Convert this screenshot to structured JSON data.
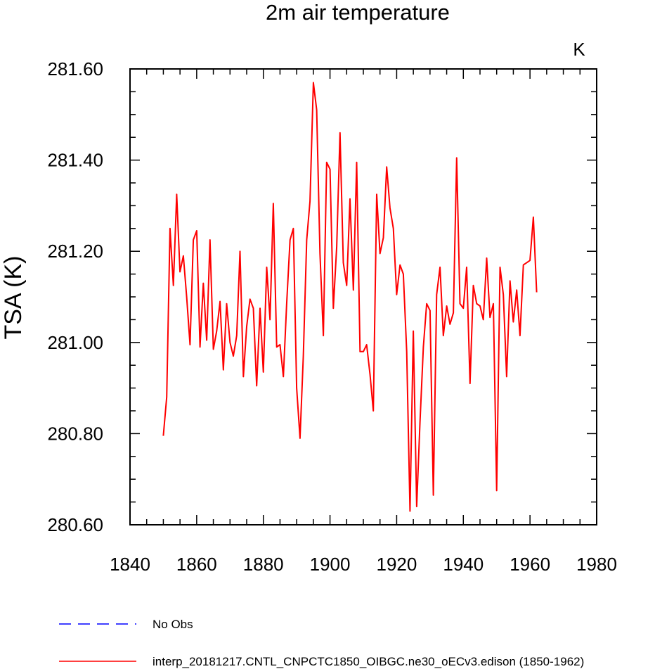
{
  "chart_data": {
    "type": "line",
    "title": "2m air temperature",
    "units": "K",
    "xlabel": "",
    "ylabel": "TSA  (K)",
    "xlim": [
      1840,
      1980
    ],
    "ylim": [
      280.6,
      281.6
    ],
    "x_ticks": [
      1840,
      1860,
      1880,
      1900,
      1920,
      1940,
      1960,
      1980
    ],
    "x_tick_labels": [
      "1840",
      "1860",
      "1880",
      "1900",
      "1920",
      "1940",
      "1960",
      "1980"
    ],
    "y_ticks": [
      280.6,
      280.8,
      281.0,
      281.2,
      281.4,
      281.6
    ],
    "y_tick_labels": [
      "280.60",
      "280.80",
      "281.00",
      "281.20",
      "281.40",
      "281.60"
    ],
    "x_minor_step": 5,
    "y_minor_step": 0.05,
    "grid": false,
    "legend_position": "bottom-left",
    "series": [
      {
        "name": "interp_20181217.CNTL_CNPCTC1850_OIBGC.ne30_oECv3.edison (1850-1962)",
        "color": "#ff0000",
        "style": "solid",
        "x": [
          1850,
          1851,
          1852,
          1853,
          1854,
          1855,
          1856,
          1857,
          1858,
          1859,
          1860,
          1861,
          1862,
          1863,
          1864,
          1865,
          1866,
          1867,
          1868,
          1869,
          1870,
          1871,
          1872,
          1873,
          1874,
          1875,
          1876,
          1877,
          1878,
          1879,
          1880,
          1881,
          1882,
          1883,
          1884,
          1885,
          1886,
          1887,
          1888,
          1889,
          1890,
          1891,
          1892,
          1893,
          1894,
          1895,
          1896,
          1897,
          1898,
          1899,
          1900,
          1901,
          1902,
          1903,
          1904,
          1905,
          1906,
          1907,
          1908,
          1909,
          1910,
          1911,
          1912,
          1913,
          1914,
          1915,
          1916,
          1917,
          1918,
          1919,
          1920,
          1921,
          1922,
          1923,
          1924,
          1925,
          1926,
          1927,
          1928,
          1929,
          1930,
          1931,
          1932,
          1933,
          1934,
          1935,
          1936,
          1937,
          1938,
          1939,
          1940,
          1941,
          1942,
          1943,
          1944,
          1945,
          1946,
          1947,
          1948,
          1949,
          1950,
          1951,
          1952,
          1953,
          1954,
          1955,
          1956,
          1957,
          1958,
          1959,
          1960,
          1961,
          1962
        ],
        "values": [
          280.795,
          280.88,
          281.25,
          281.125,
          281.325,
          281.155,
          281.19,
          281.1,
          280.995,
          281.225,
          281.245,
          280.99,
          281.13,
          281.005,
          281.225,
          280.985,
          281.025,
          281.09,
          280.94,
          281.085,
          281.0,
          280.97,
          281.015,
          281.2,
          280.925,
          281.035,
          281.095,
          281.075,
          280.905,
          281.075,
          280.935,
          281.165,
          281.05,
          281.305,
          280.99,
          280.995,
          280.925,
          281.085,
          281.225,
          281.25,
          280.9,
          280.79,
          280.97,
          281.225,
          281.31,
          281.57,
          281.51,
          281.195,
          281.015,
          281.395,
          281.38,
          281.075,
          281.21,
          281.46,
          281.175,
          281.125,
          281.315,
          281.115,
          281.395,
          280.98,
          280.98,
          280.995,
          280.93,
          280.85,
          281.325,
          281.195,
          281.23,
          281.385,
          281.295,
          281.25,
          281.105,
          281.17,
          281.15,
          280.98,
          280.63,
          281.025,
          280.64,
          280.825,
          280.99,
          281.085,
          281.07,
          280.665,
          281.105,
          281.165,
          281.015,
          281.08,
          281.04,
          281.065,
          281.405,
          281.085,
          281.075,
          281.165,
          280.91,
          281.125,
          281.085,
          281.08,
          281.05,
          281.185,
          281.055,
          281.085,
          280.675,
          281.165,
          281.105,
          280.925,
          281.135,
          281.045,
          281.115,
          281.015,
          281.17,
          281.175,
          281.18,
          281.275,
          281.11
        ]
      }
    ],
    "legend": [
      {
        "label": "No Obs",
        "color": "#0000ff",
        "style": "dashed"
      },
      {
        "label": "interp_20181217.CNTL_CNPCTC1850_OIBGC.ne30_oECv3.edison (1850-1962)",
        "color": "#ff0000",
        "style": "solid"
      }
    ]
  }
}
